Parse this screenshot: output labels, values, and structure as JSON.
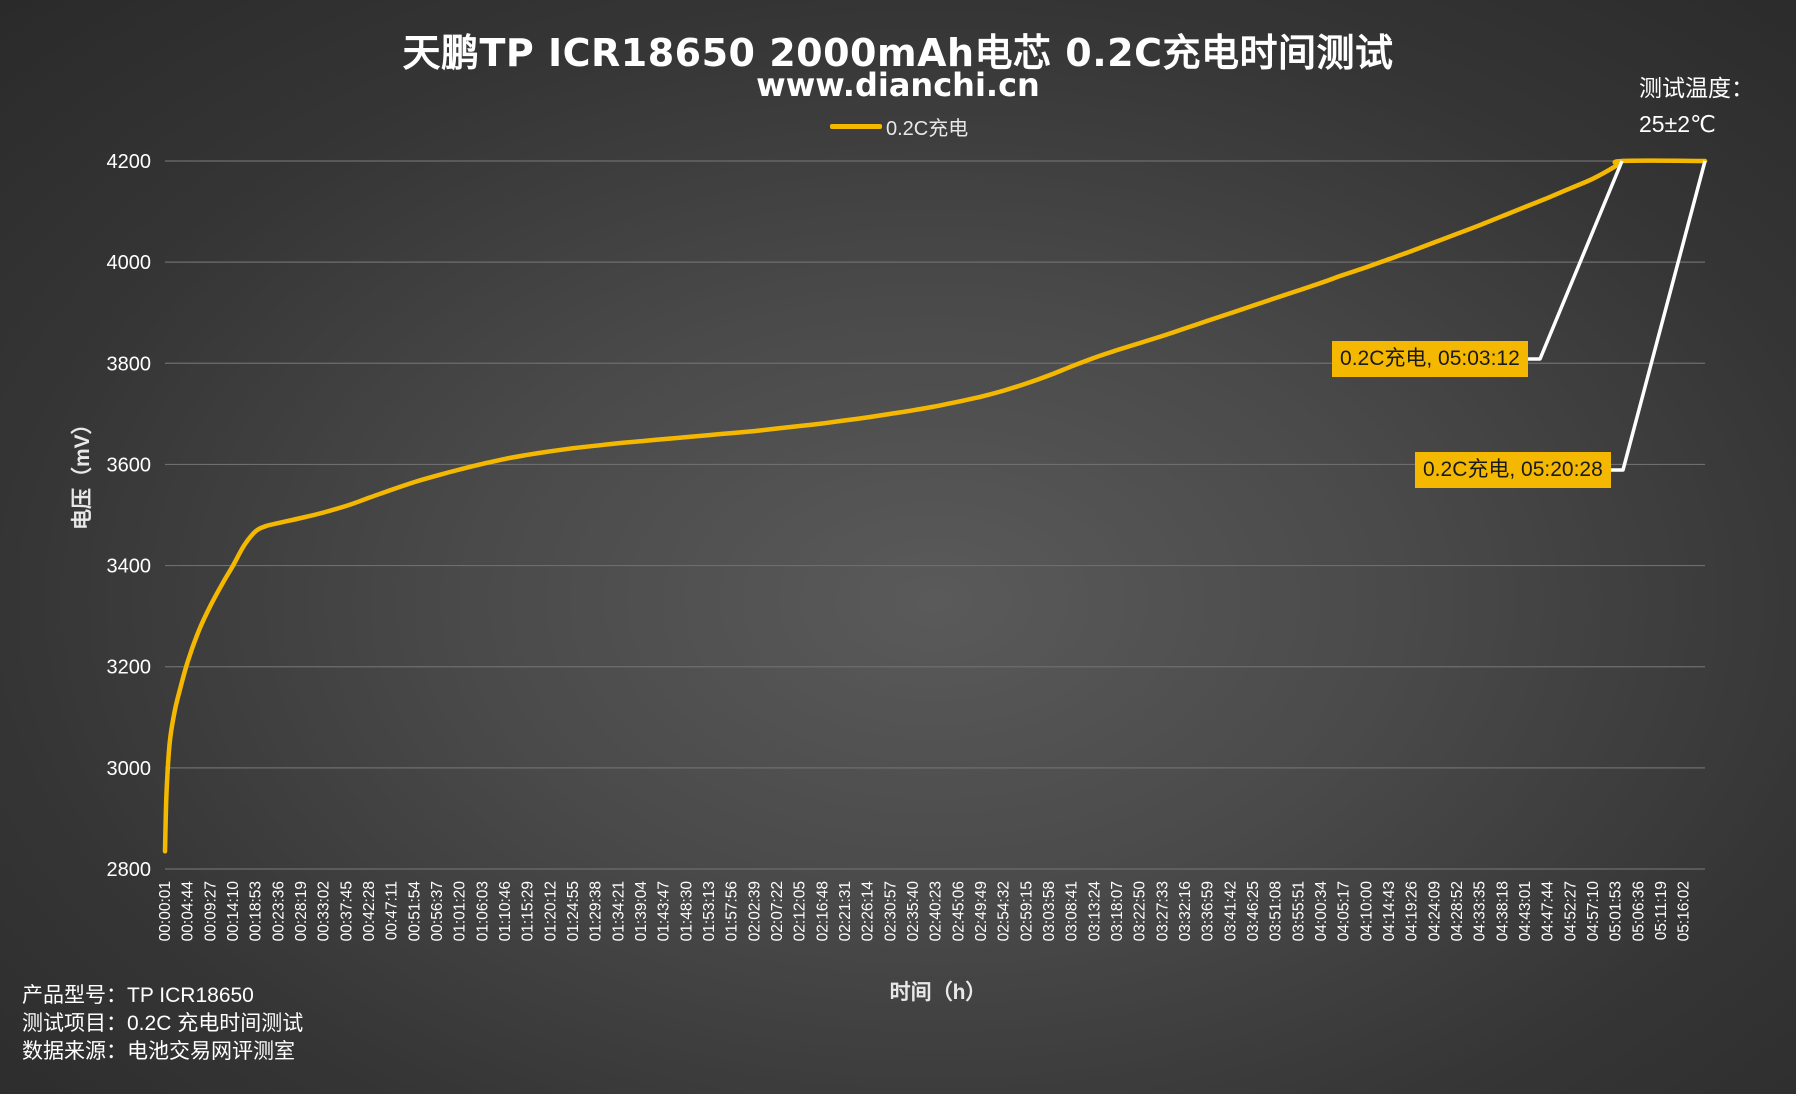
{
  "header": {
    "title": "天鹏TP ICR18650 2000mAh电芯 0.2C充电时间测试",
    "subtitle": "www.dianchi.cn"
  },
  "temperature_note": {
    "line1": "测试温度：",
    "line2": "25±2℃"
  },
  "footer": {
    "model": "产品型号：TP ICR18650",
    "test_item": "测试项目：0.2C 充电时间测试",
    "source": "数据来源：电池交易网评测室"
  },
  "colors": {
    "series": "#f5b800",
    "grid": "#6e6e6e",
    "callout_line": "#ffffff"
  },
  "chart_data": {
    "type": "line",
    "title": "天鹏TP ICR18650 2000mAh电芯 0.2C充电时间测试",
    "xlabel": "时间（h）",
    "ylabel": "电压（mV）",
    "ylim": [
      2800,
      4200
    ],
    "yticks": [
      2800,
      3000,
      3200,
      3400,
      3600,
      3800,
      4000,
      4200
    ],
    "grid": true,
    "legend_position": "top-center",
    "x_tick_labels": [
      "00:00:01",
      "00:04:44",
      "00:09:27",
      "00:14:10",
      "00:18:53",
      "00:23:36",
      "00:28:19",
      "00:33:02",
      "00:37:45",
      "00:42:28",
      "00:47:11",
      "00:51:54",
      "00:56:37",
      "01:01:20",
      "01:06:03",
      "01:10:46",
      "01:15:29",
      "01:20:12",
      "01:24:55",
      "01:29:38",
      "01:34:21",
      "01:39:04",
      "01:43:47",
      "01:48:30",
      "01:53:13",
      "01:57:56",
      "02:02:39",
      "02:07:22",
      "02:12:05",
      "02:16:48",
      "02:21:31",
      "02:26:14",
      "02:30:57",
      "02:35:40",
      "02:40:23",
      "02:45:06",
      "02:49:49",
      "02:54:32",
      "02:59:15",
      "03:03:58",
      "03:08:41",
      "03:13:24",
      "03:18:07",
      "03:22:50",
      "03:27:33",
      "03:32:16",
      "03:36:59",
      "03:41:42",
      "03:46:25",
      "03:51:08",
      "03:55:51",
      "04:00:34",
      "04:05:17",
      "04:10:00",
      "04:14:43",
      "04:19:26",
      "04:24:09",
      "04:28:52",
      "04:33:35",
      "04:38:18",
      "04:43:01",
      "04:47:44",
      "04:52:27",
      "04:57:10",
      "05:01:53",
      "05:06:36",
      "05:11:19",
      "05:16:02"
    ],
    "series": [
      {
        "name": "0.2C充电",
        "color": "#f5b800",
        "points": [
          [
            "00:00:01",
            2835
          ],
          [
            "00:00:20",
            2950
          ],
          [
            "00:01:00",
            3050
          ],
          [
            "00:02:00",
            3110
          ],
          [
            "00:03:00",
            3150
          ],
          [
            "00:04:44",
            3210
          ],
          [
            "00:07:00",
            3270
          ],
          [
            "00:09:27",
            3320
          ],
          [
            "00:12:00",
            3365
          ],
          [
            "00:14:10",
            3400
          ],
          [
            "00:16:30",
            3440
          ],
          [
            "00:18:53",
            3468
          ],
          [
            "00:21:00",
            3478
          ],
          [
            "00:23:36",
            3484
          ],
          [
            "00:28:19",
            3494
          ],
          [
            "00:33:02",
            3505
          ],
          [
            "00:37:45",
            3518
          ],
          [
            "00:42:28",
            3534
          ],
          [
            "00:47:11",
            3550
          ],
          [
            "00:51:54",
            3565
          ],
          [
            "00:56:37",
            3578
          ],
          [
            "01:01:20",
            3590
          ],
          [
            "01:06:03",
            3601
          ],
          [
            "01:10:46",
            3611
          ],
          [
            "01:15:29",
            3619
          ],
          [
            "01:20:12",
            3626
          ],
          [
            "01:24:55",
            3632
          ],
          [
            "01:29:38",
            3637
          ],
          [
            "01:34:21",
            3642
          ],
          [
            "01:39:04",
            3646
          ],
          [
            "01:43:47",
            3650
          ],
          [
            "01:48:30",
            3654
          ],
          [
            "01:53:13",
            3658
          ],
          [
            "01:57:56",
            3662
          ],
          [
            "02:02:39",
            3666
          ],
          [
            "02:07:22",
            3671
          ],
          [
            "02:12:05",
            3676
          ],
          [
            "02:16:48",
            3681
          ],
          [
            "02:21:31",
            3687
          ],
          [
            "02:26:14",
            3693
          ],
          [
            "02:30:57",
            3700
          ],
          [
            "02:35:40",
            3707
          ],
          [
            "02:40:23",
            3715
          ],
          [
            "02:45:06",
            3724
          ],
          [
            "02:49:49",
            3734
          ],
          [
            "02:54:32",
            3746
          ],
          [
            "02:59:15",
            3760
          ],
          [
            "03:03:58",
            3776
          ],
          [
            "03:08:41",
            3794
          ],
          [
            "03:13:24",
            3811
          ],
          [
            "03:18:07",
            3826
          ],
          [
            "03:22:50",
            3840
          ],
          [
            "03:27:33",
            3854
          ],
          [
            "03:32:16",
            3869
          ],
          [
            "03:36:59",
            3884
          ],
          [
            "03:41:42",
            3899
          ],
          [
            "03:46:25",
            3914
          ],
          [
            "03:51:08",
            3929
          ],
          [
            "03:55:51",
            3944
          ],
          [
            "04:00:34",
            3959
          ],
          [
            "04:05:17",
            3975
          ],
          [
            "04:10:00",
            3990
          ],
          [
            "04:14:43",
            4006
          ],
          [
            "04:19:26",
            4022
          ],
          [
            "04:24:09",
            4039
          ],
          [
            "04:28:52",
            4056
          ],
          [
            "04:33:35",
            4073
          ],
          [
            "04:38:18",
            4091
          ],
          [
            "04:43:01",
            4109
          ],
          [
            "04:47:44",
            4127
          ],
          [
            "04:52:27",
            4146
          ],
          [
            "04:57:10",
            4165
          ],
          [
            "05:01:53",
            4190
          ],
          [
            "05:03:12",
            4200
          ],
          [
            "05:20:28",
            4200
          ]
        ]
      }
    ],
    "annotations": [
      {
        "text": "0.2C充电, 05:03:12",
        "x": "05:03:12",
        "y": 4200
      },
      {
        "text": "0.2C充电, 05:20:28",
        "x": "05:20:28",
        "y": 4200
      }
    ]
  }
}
